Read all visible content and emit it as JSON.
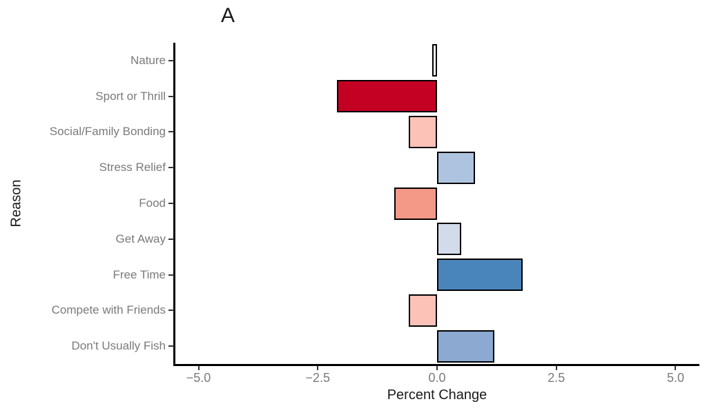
{
  "chart_data": {
    "type": "bar",
    "orientation": "horizontal",
    "panel_label": "A",
    "title": "",
    "xlabel": "Percent Change",
    "ylabel": "Reason",
    "categories": [
      "Nature",
      "Sport or Thrill",
      "Social/Family Bonding",
      "Stress Relief",
      "Food",
      "Get Away",
      "Free Time",
      "Compete with Friends",
      "Don't Usually Fish"
    ],
    "values": [
      -0.1,
      -2.1,
      -0.6,
      0.8,
      -0.9,
      0.5,
      1.8,
      -0.6,
      1.2
    ],
    "bar_colors": [
      "#ffffff",
      "#c40123",
      "#fcc1b7",
      "#aec3df",
      "#f49987",
      "#d2dbe9",
      "#4985bb",
      "#fcc1b7",
      "#8ba9d1"
    ],
    "bar_outline_color": "#000000",
    "xlim": [
      -5.5,
      5.5
    ],
    "xticks": {
      "values": [
        -5.0,
        -2.5,
        0.0,
        2.5,
        5.0
      ],
      "labels": [
        "−5.0",
        "−2.5",
        "0.0",
        "2.5",
        "5.0"
      ]
    },
    "grid": "off",
    "legend": "none",
    "background": "#ffffff",
    "axis_color": "#000000",
    "tick_label_color": "#7a7a7a",
    "title_color": "#1a1a1a"
  }
}
